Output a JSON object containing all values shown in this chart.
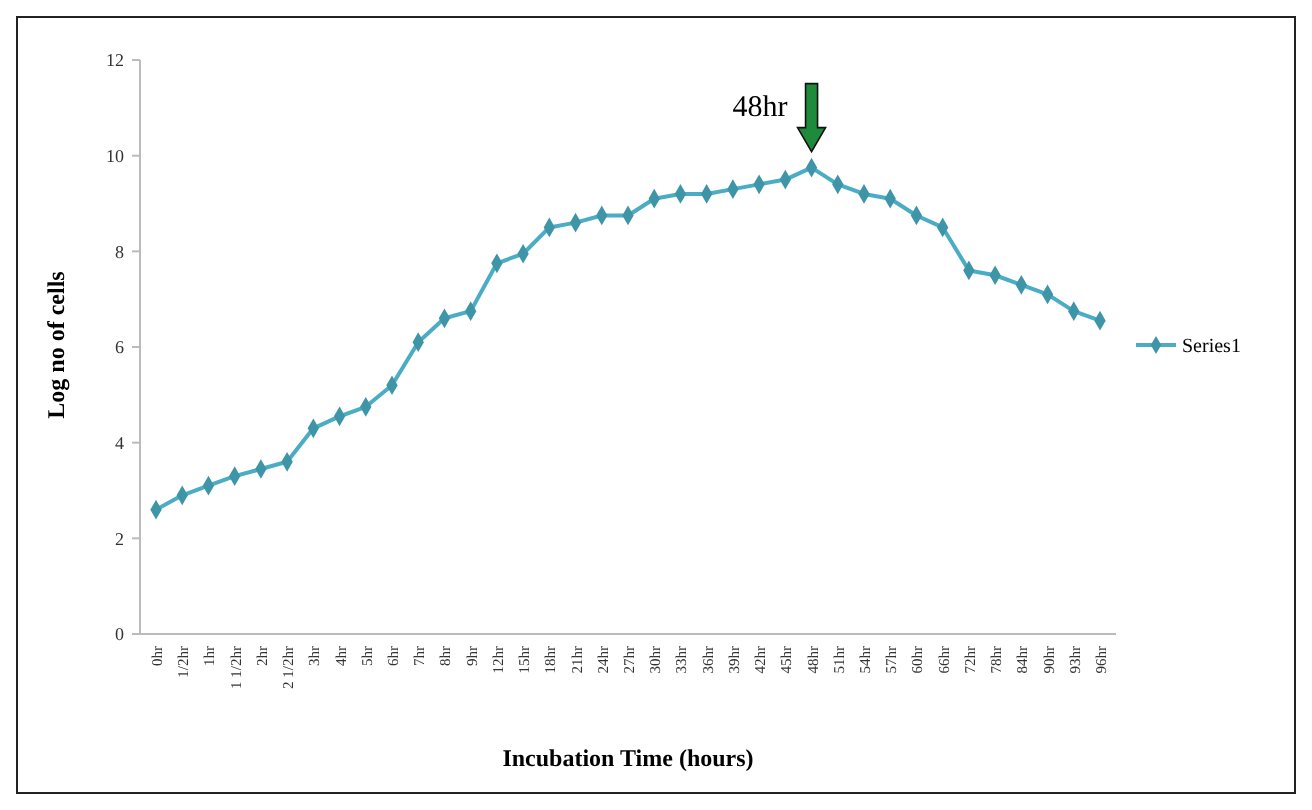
{
  "chart_data": {
    "type": "line",
    "xlabel": "Incubation Time (hours)",
    "ylabel": "Log no of cells",
    "categories": [
      "0hr",
      "1/2hr",
      "1hr",
      "1 1/2hr",
      "2hr",
      "2 1/2hr",
      "3hr",
      "4hr",
      "5hr",
      "6hr",
      "7hr",
      "8hr",
      "9hr",
      "12hr",
      "15hr",
      "18hr",
      "21hr",
      "24hr",
      "27hr",
      "30hr",
      "33hr",
      "36hr",
      "39hr",
      "42hr",
      "45hr",
      "48hr",
      "51hr",
      "54hr",
      "57hr",
      "60hr",
      "66hr",
      "72hr",
      "78hr",
      "84hr",
      "90hr",
      "93hr",
      "96hr"
    ],
    "series": [
      {
        "name": "Series1",
        "color": "#4bacc6",
        "values": [
          2.6,
          2.9,
          3.1,
          3.3,
          3.45,
          3.6,
          4.3,
          4.55,
          4.75,
          5.2,
          6.1,
          6.6,
          6.75,
          7.75,
          7.95,
          8.5,
          8.6,
          8.75,
          8.75,
          9.1,
          9.2,
          9.2,
          9.3,
          9.4,
          9.5,
          9.75,
          9.4,
          9.2,
          9.1,
          8.75,
          8.5,
          7.6,
          7.5,
          7.3,
          7.1,
          6.75,
          6.55
        ]
      }
    ],
    "ylim": [
      0,
      12
    ],
    "yticks": [
      0,
      2,
      4,
      6,
      8,
      10,
      12
    ],
    "grid": false,
    "legend": "right",
    "marker": "diamond",
    "line_style": "solid",
    "annotations": [
      {
        "text": "48hr",
        "x": "48hr",
        "y": 9.75
      }
    ]
  }
}
